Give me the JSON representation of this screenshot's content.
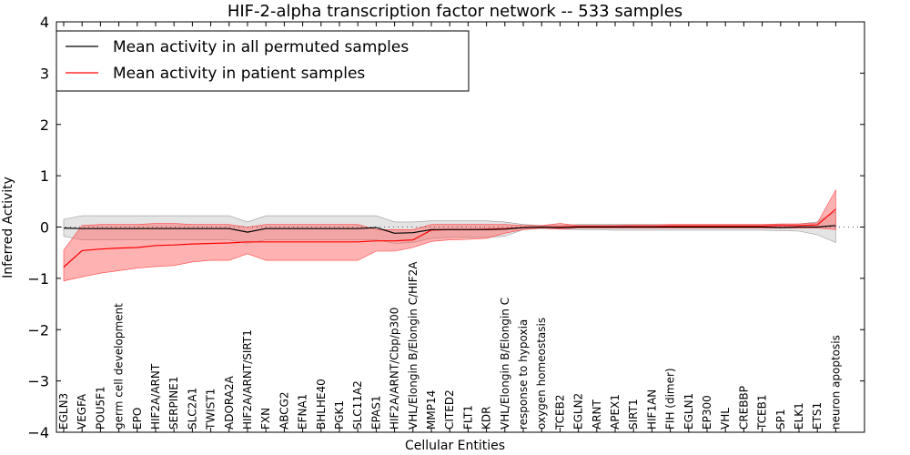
{
  "chart_data": {
    "type": "line",
    "title": "HIF-2-alpha transcription factor network -- 533 samples",
    "xlabel": "Cellular Entities",
    "ylabel": "Inferred Activity",
    "ylim": [
      -4,
      4
    ],
    "yticks": [
      -4,
      -3,
      -2,
      -1,
      0,
      1,
      2,
      3,
      4
    ],
    "ytick_labels": [
      "−4",
      "−3",
      "−2",
      "−1",
      "0",
      "1",
      "2",
      "3",
      "4"
    ],
    "legend_position": "top-left",
    "colors": {
      "permuted": "#000000",
      "patient": "#ff0000",
      "permuted_band": "#bbbbbb",
      "patient_band": "#ff6666",
      "zero_line": "#555555"
    },
    "categories": [
      "EGLN3",
      "VEGFA",
      "POU5F1",
      "germ cell development",
      "EPO",
      "HIF2A/ARNT",
      "SERPINE1",
      "SLC2A1",
      "TWIST1",
      "ADORA2A",
      "HIF2A/ARNT/SIRT1",
      "FXN",
      "ABCG2",
      "EFNA1",
      "BHLHE40",
      "PGK1",
      "SLC11A2",
      "EPAS1",
      "HIF2A/ARNT/Cbp/p300",
      "VHL/Elongin B/Elongin C/HIF2A",
      "MMP14",
      "CITED2",
      "FLT1",
      "KDR",
      "VHL/Elongin B/Elongin C",
      "response to hypoxia",
      "oxygen homeostasis",
      "TCEB2",
      "EGLN2",
      "ARNT",
      "APEX1",
      "SIRT1",
      "HIF1AN",
      "FIH (dimer)",
      "EGLN1",
      "EP300",
      "VHL",
      "CREBBP",
      "TCEB1",
      "SP1",
      "ELK1",
      "ETS1",
      "neuron apoptosis"
    ],
    "series": [
      {
        "name": "Mean activity in all permuted samples",
        "values": [
          -0.02,
          -0.03,
          -0.03,
          -0.03,
          -0.03,
          -0.03,
          -0.03,
          -0.03,
          -0.03,
          -0.03,
          -0.1,
          -0.03,
          -0.03,
          -0.03,
          -0.03,
          -0.03,
          -0.03,
          -0.01,
          -0.12,
          -0.11,
          -0.05,
          -0.05,
          -0.05,
          -0.05,
          -0.04,
          -0.01,
          0.0,
          -0.01,
          0.0,
          0.0,
          0.0,
          0.0,
          0.0,
          0.0,
          0.0,
          0.0,
          0.0,
          0.0,
          0.0,
          -0.01,
          0.0,
          0.0,
          0.03
        ],
        "lower": [
          -0.18,
          -0.25,
          -0.25,
          -0.25,
          -0.25,
          -0.25,
          -0.25,
          -0.25,
          -0.25,
          -0.25,
          -0.32,
          -0.25,
          -0.25,
          -0.25,
          -0.25,
          -0.25,
          -0.25,
          -0.25,
          -0.32,
          -0.3,
          -0.22,
          -0.2,
          -0.2,
          -0.2,
          -0.18,
          -0.05,
          -0.03,
          -0.04,
          -0.05,
          -0.05,
          -0.06,
          -0.06,
          -0.06,
          -0.06,
          -0.06,
          -0.06,
          -0.06,
          -0.06,
          -0.06,
          -0.07,
          -0.08,
          -0.15,
          -0.3
        ],
        "upper": [
          0.15,
          0.22,
          0.22,
          0.22,
          0.22,
          0.22,
          0.22,
          0.22,
          0.22,
          0.22,
          0.1,
          0.22,
          0.22,
          0.22,
          0.22,
          0.22,
          0.22,
          0.22,
          0.1,
          0.1,
          0.12,
          0.12,
          0.12,
          0.12,
          0.1,
          0.05,
          0.03,
          0.03,
          0.05,
          0.05,
          0.05,
          0.05,
          0.05,
          0.05,
          0.05,
          0.05,
          0.05,
          0.05,
          0.05,
          0.05,
          0.06,
          0.1,
          0.3
        ]
      },
      {
        "name": "Mean activity in patient samples",
        "values": [
          -0.78,
          -0.46,
          -0.43,
          -0.41,
          -0.4,
          -0.36,
          -0.35,
          -0.33,
          -0.32,
          -0.31,
          -0.29,
          -0.29,
          -0.29,
          -0.29,
          -0.29,
          -0.29,
          -0.29,
          -0.27,
          -0.27,
          -0.25,
          -0.06,
          -0.05,
          -0.05,
          -0.04,
          -0.03,
          -0.01,
          0.0,
          0.0,
          0.01,
          0.01,
          0.01,
          0.01,
          0.01,
          0.02,
          0.02,
          0.02,
          0.02,
          0.02,
          0.02,
          0.03,
          0.03,
          0.04,
          0.35
        ],
        "lower": [
          -1.05,
          -0.97,
          -0.9,
          -0.85,
          -0.8,
          -0.77,
          -0.75,
          -0.68,
          -0.65,
          -0.65,
          -0.52,
          -0.65,
          -0.65,
          -0.65,
          -0.65,
          -0.65,
          -0.65,
          -0.47,
          -0.47,
          -0.4,
          -0.28,
          -0.25,
          -0.24,
          -0.22,
          -0.12,
          -0.05,
          -0.02,
          -0.04,
          -0.02,
          -0.02,
          -0.02,
          -0.02,
          -0.02,
          -0.02,
          -0.02,
          -0.02,
          -0.02,
          -0.02,
          -0.02,
          -0.02,
          -0.02,
          -0.02,
          -0.05
        ],
        "upper": [
          -0.45,
          0.03,
          0.05,
          0.05,
          0.05,
          0.07,
          0.07,
          0.05,
          0.05,
          0.05,
          0.0,
          0.05,
          0.05,
          0.05,
          0.05,
          0.05,
          0.05,
          -0.05,
          -0.05,
          -0.05,
          0.05,
          0.05,
          0.05,
          0.05,
          0.05,
          0.03,
          0.03,
          0.07,
          0.03,
          0.03,
          0.03,
          0.04,
          0.04,
          0.05,
          0.05,
          0.05,
          0.05,
          0.05,
          0.05,
          0.06,
          0.06,
          0.08,
          0.72
        ]
      }
    ]
  }
}
